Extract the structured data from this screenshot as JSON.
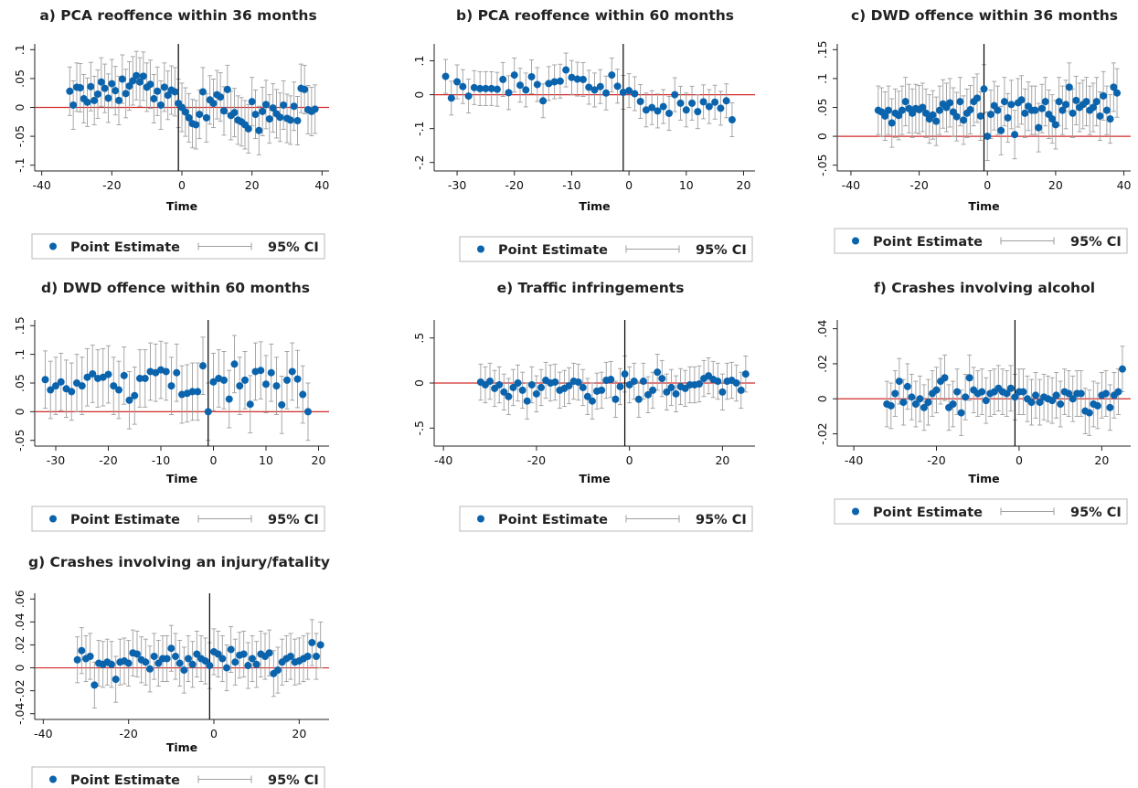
{
  "legend": {
    "point_label": "Point Estimate",
    "ci_label": "95% CI"
  },
  "colors": {
    "point": "#0a64ad",
    "ci": "#9e9e9e",
    "zero_line": "#d22b2b",
    "cutoff_line": "#000000",
    "axis": "#222222"
  },
  "chart_data": [
    {
      "type": "scatter",
      "title": "a) PCA reoffence within 36 months",
      "xlabel": "Time",
      "ylabel": "",
      "xlim": [
        -42,
        42
      ],
      "ylim": [
        -0.11,
        0.11
      ],
      "xticks": [
        -40,
        -20,
        0,
        20,
        40
      ],
      "xtick_labels": [
        "-40",
        "-20",
        "0",
        "20",
        "40"
      ],
      "yticks": [
        -0.1,
        -0.05,
        0,
        0.05,
        0.1
      ],
      "ytick_labels": [
        "-.1",
        "-.05",
        "0",
        ".05",
        ".1"
      ],
      "cutoff_x": -1,
      "x": [
        -32,
        -31,
        -30,
        -29,
        -28,
        -27,
        -26,
        -25,
        -24,
        -23,
        -22,
        -21,
        -20,
        -19,
        -18,
        -17,
        -16,
        -15,
        -14,
        -13,
        -12,
        -11,
        -10,
        -9,
        -8,
        -7,
        -6,
        -5,
        -4,
        -3,
        -2,
        -1,
        0,
        1,
        2,
        3,
        4,
        5,
        6,
        7,
        8,
        9,
        10,
        11,
        12,
        13,
        14,
        15,
        16,
        17,
        18,
        19,
        20,
        21,
        22,
        23,
        24,
        25,
        26,
        27,
        28,
        29,
        30,
        31,
        32,
        33,
        34,
        35,
        36,
        37,
        38
      ],
      "y": [
        0.028,
        0.004,
        0.035,
        0.034,
        0.015,
        0.009,
        0.036,
        0.012,
        0.023,
        0.044,
        0.033,
        0.016,
        0.041,
        0.029,
        0.012,
        0.049,
        0.024,
        0.037,
        0.046,
        0.055,
        0.044,
        0.054,
        0.035,
        0.04,
        0.015,
        0.028,
        0.004,
        0.035,
        0.021,
        0.03,
        0.027,
        0.007,
        0.0,
        -0.008,
        -0.018,
        -0.028,
        -0.03,
        -0.012,
        0.027,
        -0.018,
        0.013,
        0.007,
        0.022,
        0.018,
        -0.006,
        0.031,
        -0.014,
        -0.009,
        -0.022,
        -0.025,
        -0.03,
        -0.037,
        0.01,
        -0.012,
        -0.04,
        -0.007,
        0.005,
        -0.02,
        -0.001,
        -0.011,
        -0.017,
        0.004,
        -0.019,
        -0.022,
        0.002,
        -0.023,
        0.033,
        0.031,
        -0.004,
        -0.007,
        -0.003
      ],
      "ci_half": 0.042
    },
    {
      "type": "scatter",
      "title": "b) PCA reoffence within 60 months",
      "xlabel": "Time",
      "ylabel": "",
      "xlim": [
        -34,
        22
      ],
      "ylim": [
        -0.225,
        0.15
      ],
      "xticks": [
        -30,
        -20,
        -10,
        0,
        10,
        20
      ],
      "xtick_labels": [
        "-30",
        "-20",
        "-10",
        "0",
        "10",
        "20"
      ],
      "yticks": [
        -0.2,
        -0.1,
        0,
        0.1
      ],
      "ytick_labels": [
        "-.2",
        "-.1",
        "0",
        ".1"
      ],
      "cutoff_x": -1,
      "x": [
        -32,
        -31,
        -30,
        -29,
        -28,
        -27,
        -26,
        -25,
        -24,
        -23,
        -22,
        -21,
        -20,
        -19,
        -18,
        -17,
        -16,
        -15,
        -14,
        -13,
        -12,
        -11,
        -10,
        -9,
        -8,
        -7,
        -6,
        -5,
        -4,
        -3,
        -2,
        -1,
        0,
        1,
        2,
        3,
        4,
        5,
        6,
        7,
        8,
        9,
        10,
        11,
        12,
        13,
        14,
        15,
        16,
        17,
        18
      ],
      "y": [
        0.054,
        -0.01,
        0.038,
        0.024,
        -0.004,
        0.021,
        0.018,
        0.018,
        0.018,
        0.016,
        0.045,
        0.006,
        0.058,
        0.028,
        0.014,
        0.053,
        0.03,
        -0.018,
        0.033,
        0.038,
        0.04,
        0.073,
        0.051,
        0.046,
        0.045,
        0.022,
        0.014,
        0.024,
        0.005,
        0.058,
        0.025,
        0.007,
        0.012,
        0.003,
        -0.02,
        -0.045,
        -0.038,
        -0.048,
        -0.035,
        -0.055,
        0.0,
        -0.025,
        -0.045,
        -0.025,
        -0.05,
        -0.021,
        -0.035,
        -0.022,
        -0.04,
        -0.018,
        -0.074
      ],
      "ci_half": 0.05
    },
    {
      "type": "scatter",
      "title": "c) DWD offence within 36 months",
      "xlabel": "Time",
      "ylabel": "",
      "xlim": [
        -44,
        42
      ],
      "ylim": [
        -0.06,
        0.16
      ],
      "xticks": [
        -40,
        -20,
        0,
        20,
        40
      ],
      "xtick_labels": [
        "-40",
        "-20",
        "0",
        "20",
        "40"
      ],
      "yticks": [
        -0.05,
        0,
        0.05,
        0.1,
        0.15
      ],
      "ytick_labels": [
        "-.05",
        "0",
        ".05",
        ".1",
        ".15"
      ],
      "cutoff_x": -1,
      "x": [
        -32,
        -31,
        -30,
        -29,
        -28,
        -27,
        -26,
        -25,
        -24,
        -23,
        -22,
        -21,
        -20,
        -19,
        -18,
        -17,
        -16,
        -15,
        -14,
        -13,
        -12,
        -11,
        -10,
        -9,
        -8,
        -7,
        -6,
        -5,
        -4,
        -3,
        -2,
        -1,
        0,
        1,
        2,
        3,
        4,
        5,
        6,
        7,
        8,
        9,
        10,
        11,
        12,
        13,
        14,
        15,
        16,
        17,
        18,
        19,
        20,
        21,
        22,
        23,
        24,
        25,
        26,
        27,
        28,
        29,
        30,
        31,
        32,
        33,
        34,
        35,
        36,
        37,
        38
      ],
      "y": [
        0.045,
        0.042,
        0.035,
        0.045,
        0.023,
        0.04,
        0.036,
        0.045,
        0.06,
        0.048,
        0.04,
        0.048,
        0.046,
        0.05,
        0.04,
        0.03,
        0.037,
        0.026,
        0.045,
        0.056,
        0.05,
        0.058,
        0.042,
        0.034,
        0.06,
        0.028,
        0.04,
        0.046,
        0.06,
        0.066,
        0.035,
        0.082,
        0.0,
        0.038,
        0.053,
        0.045,
        0.01,
        0.06,
        0.032,
        0.055,
        0.003,
        0.058,
        0.063,
        0.04,
        0.052,
        0.045,
        0.045,
        0.015,
        0.048,
        0.06,
        0.038,
        0.03,
        0.02,
        0.06,
        0.045,
        0.055,
        0.085,
        0.04,
        0.062,
        0.05,
        0.055,
        0.06,
        0.045,
        0.05,
        0.06,
        0.035,
        0.07,
        0.045,
        0.03,
        0.085,
        0.075
      ],
      "ci_half": 0.042
    },
    {
      "type": "scatter",
      "title": "d) DWD offence within 60 months",
      "xlabel": "Time",
      "ylabel": "",
      "xlim": [
        -34,
        22
      ],
      "ylim": [
        -0.06,
        0.16
      ],
      "xticks": [
        -30,
        -20,
        -10,
        0,
        10,
        20
      ],
      "xtick_labels": [
        "-30",
        "-20",
        "-10",
        "0",
        "10",
        "20"
      ],
      "yticks": [
        -0.05,
        0,
        0.05,
        0.1,
        0.15
      ],
      "ytick_labels": [
        "-.05",
        "0",
        ".05",
        ".1",
        ".15"
      ],
      "cutoff_x": -1,
      "x": [
        -32,
        -31,
        -30,
        -29,
        -28,
        -27,
        -26,
        -25,
        -24,
        -23,
        -22,
        -21,
        -20,
        -19,
        -18,
        -17,
        -16,
        -15,
        -14,
        -13,
        -12,
        -11,
        -10,
        -9,
        -8,
        -7,
        -6,
        -5,
        -4,
        -3,
        -2,
        -1,
        0,
        1,
        2,
        3,
        4,
        5,
        6,
        7,
        8,
        9,
        10,
        11,
        12,
        13,
        14,
        15,
        16,
        17,
        18
      ],
      "y": [
        0.056,
        0.038,
        0.045,
        0.052,
        0.04,
        0.035,
        0.05,
        0.045,
        0.06,
        0.066,
        0.058,
        0.06,
        0.065,
        0.045,
        0.038,
        0.063,
        0.02,
        0.028,
        0.058,
        0.058,
        0.07,
        0.068,
        0.073,
        0.07,
        0.045,
        0.068,
        0.03,
        0.032,
        0.035,
        0.035,
        0.08,
        0.0,
        0.052,
        0.058,
        0.055,
        0.022,
        0.083,
        0.045,
        0.055,
        0.013,
        0.07,
        0.072,
        0.048,
        0.068,
        0.045,
        0.012,
        0.055,
        0.07,
        0.057,
        0.03,
        0.0
      ],
      "ci_half": 0.05
    },
    {
      "type": "scatter",
      "title": "e) Traffic infringements",
      "xlabel": "Time",
      "ylabel": "",
      "xlim": [
        -42,
        27
      ],
      "ylim": [
        -0.7,
        0.7
      ],
      "xticks": [
        -40,
        -20,
        0,
        20
      ],
      "xtick_labels": [
        "-40",
        "-20",
        "0",
        "20"
      ],
      "yticks": [
        -0.5,
        0,
        0.5
      ],
      "ytick_labels": [
        "-.5",
        "0",
        ".5"
      ],
      "cutoff_x": -1,
      "x": [
        -32,
        -31,
        -30,
        -29,
        -28,
        -27,
        -26,
        -25,
        -24,
        -23,
        -22,
        -21,
        -20,
        -19,
        -18,
        -17,
        -16,
        -15,
        -14,
        -13,
        -12,
        -11,
        -10,
        -9,
        -8,
        -7,
        -6,
        -5,
        -4,
        -3,
        -2,
        -1,
        0,
        1,
        2,
        3,
        4,
        5,
        6,
        7,
        8,
        9,
        10,
        11,
        12,
        13,
        14,
        15,
        16,
        17,
        18,
        19,
        20,
        21,
        22,
        23,
        24,
        25
      ],
      "y": [
        0.01,
        -0.02,
        0.02,
        -0.06,
        -0.02,
        -0.1,
        -0.15,
        -0.05,
        0.0,
        -0.08,
        -0.2,
        -0.02,
        -0.12,
        -0.05,
        0.03,
        0.0,
        0.01,
        -0.08,
        -0.06,
        -0.03,
        0.02,
        0.01,
        -0.05,
        -0.15,
        -0.2,
        -0.09,
        -0.08,
        0.03,
        0.04,
        -0.18,
        -0.04,
        0.1,
        -0.02,
        0.02,
        -0.18,
        0.02,
        -0.13,
        -0.08,
        0.12,
        0.05,
        -0.1,
        -0.05,
        -0.12,
        -0.04,
        -0.06,
        -0.02,
        -0.02,
        -0.01,
        0.05,
        0.08,
        0.04,
        0.02,
        -0.1,
        0.02,
        0.03,
        0.0,
        -0.08,
        0.1
      ],
      "ci_half": 0.2
    },
    {
      "type": "scatter",
      "title": "f) Crashes involving alcohol",
      "xlabel": "Time",
      "ylabel": "",
      "xlim": [
        -44,
        27
      ],
      "ylim": [
        -0.027,
        0.045
      ],
      "xticks": [
        -40,
        -20,
        0,
        20
      ],
      "xtick_labels": [
        "-40",
        "-20",
        "0",
        "20"
      ],
      "yticks": [
        -0.02,
        0,
        0.02,
        0.04
      ],
      "ytick_labels": [
        "-.02",
        "0",
        ".02",
        ".04"
      ],
      "cutoff_x": -1,
      "x": [
        -32,
        -31,
        -30,
        -29,
        -28,
        -27,
        -26,
        -25,
        -24,
        -23,
        -22,
        -21,
        -20,
        -19,
        -18,
        -17,
        -16,
        -15,
        -14,
        -13,
        -12,
        -11,
        -10,
        -9,
        -8,
        -7,
        -6,
        -5,
        -4,
        -3,
        -2,
        -1,
        0,
        1,
        2,
        3,
        4,
        5,
        6,
        7,
        8,
        9,
        10,
        11,
        12,
        13,
        14,
        15,
        16,
        17,
        18,
        19,
        20,
        21,
        22,
        23,
        24,
        25
      ],
      "y": [
        -0.003,
        -0.004,
        0.003,
        0.01,
        -0.002,
        0.007,
        0.001,
        -0.003,
        0.0,
        -0.005,
        -0.002,
        0.003,
        0.005,
        0.01,
        0.012,
        -0.005,
        -0.003,
        0.004,
        -0.008,
        0.001,
        0.012,
        0.005,
        0.003,
        0.004,
        -0.001,
        0.003,
        0.004,
        0.006,
        0.004,
        0.003,
        0.006,
        0.001,
        0.004,
        0.004,
        0.0,
        -0.002,
        0.002,
        -0.002,
        0.001,
        0.0,
        -0.001,
        0.002,
        -0.003,
        0.004,
        0.003,
        0.0,
        0.003,
        0.003,
        -0.007,
        -0.008,
        -0.003,
        -0.004,
        0.002,
        0.003,
        -0.005,
        0.002,
        0.004,
        0.017
      ],
      "ci_half": 0.013
    },
    {
      "type": "scatter",
      "title": "g) Crashes involving an injury/fatality",
      "xlabel": "Time",
      "ylabel": "",
      "xlim": [
        -42,
        27
      ],
      "ylim": [
        -0.045,
        0.065
      ],
      "xticks": [
        -40,
        -20,
        0,
        20
      ],
      "xtick_labels": [
        "-40",
        "-20",
        "0",
        "20"
      ],
      "yticks": [
        -0.04,
        -0.02,
        0,
        0.02,
        0.04,
        0.06
      ],
      "ytick_labels": [
        "-.04",
        "-.02",
        "0",
        ".02",
        ".04",
        ".06"
      ],
      "cutoff_x": -1,
      "x": [
        -32,
        -31,
        -30,
        -29,
        -28,
        -27,
        -26,
        -25,
        -24,
        -23,
        -22,
        -21,
        -20,
        -19,
        -18,
        -17,
        -16,
        -15,
        -14,
        -13,
        -12,
        -11,
        -10,
        -9,
        -8,
        -7,
        -6,
        -5,
        -4,
        -3,
        -2,
        -1,
        0,
        1,
        2,
        3,
        4,
        5,
        6,
        7,
        8,
        9,
        10,
        11,
        12,
        13,
        14,
        15,
        16,
        17,
        18,
        19,
        20,
        21,
        22,
        23,
        24,
        25
      ],
      "y": [
        0.007,
        0.015,
        0.008,
        0.01,
        -0.015,
        0.004,
        0.003,
        0.005,
        0.003,
        -0.01,
        0.005,
        0.006,
        0.004,
        0.013,
        0.012,
        0.007,
        0.005,
        -0.001,
        0.01,
        0.004,
        0.008,
        0.008,
        0.017,
        0.01,
        0.004,
        -0.002,
        0.008,
        0.003,
        0.012,
        0.008,
        0.006,
        0.002,
        0.014,
        0.012,
        0.008,
        0.0,
        0.016,
        0.005,
        0.011,
        0.012,
        0.002,
        0.008,
        0.003,
        0.012,
        0.01,
        0.013,
        -0.005,
        -0.002,
        0.005,
        0.008,
        0.01,
        0.005,
        0.006,
        0.008,
        0.01,
        0.022,
        0.01,
        0.02
      ],
      "ci_half": 0.02
    }
  ]
}
